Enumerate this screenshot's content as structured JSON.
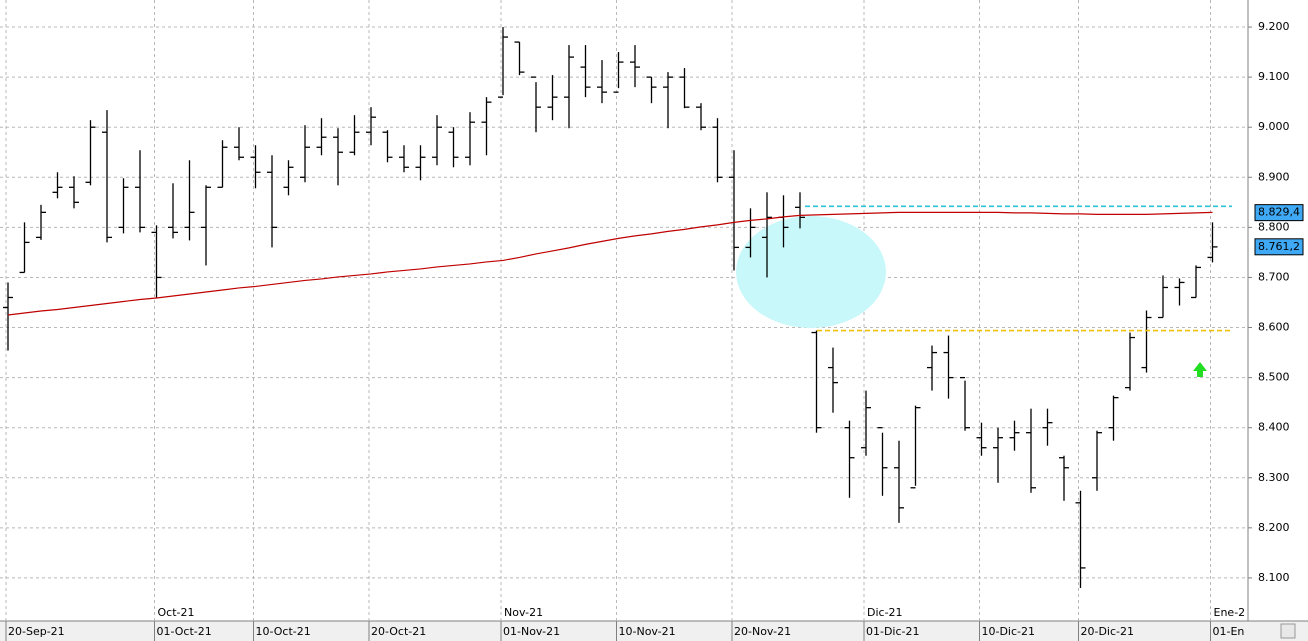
{
  "chart_data": {
    "type": "ohlc",
    "categories": [
      "20-Sep-21",
      null,
      null,
      null,
      null,
      null,
      null,
      null,
      null,
      "01-Oct-21",
      null,
      null,
      null,
      null,
      null,
      "10-Oct-21",
      null,
      null,
      null,
      null,
      null,
      null,
      "20-Oct-21",
      null,
      null,
      null,
      null,
      null,
      null,
      null,
      "01-Nov-21",
      null,
      null,
      null,
      null,
      null,
      null,
      "10-Nov-21",
      null,
      null,
      null,
      null,
      null,
      null,
      "20-Nov-21",
      null,
      null,
      null,
      null,
      null,
      null,
      null,
      "01-Dic-21",
      null,
      null,
      null,
      null,
      null,
      null,
      "10-Dic-21",
      null,
      null,
      null,
      null,
      null,
      "20-Dic-21",
      null,
      null,
      null,
      null,
      null,
      null,
      null,
      "01-En"
    ],
    "month_categories": [
      null,
      null,
      null,
      null,
      null,
      null,
      null,
      null,
      null,
      "Oct-21",
      null,
      null,
      null,
      null,
      null,
      null,
      null,
      null,
      null,
      null,
      null,
      null,
      null,
      null,
      null,
      null,
      null,
      null,
      null,
      null,
      "Nov-21",
      null,
      null,
      null,
      null,
      null,
      null,
      null,
      null,
      null,
      null,
      null,
      null,
      null,
      null,
      null,
      null,
      null,
      null,
      null,
      null,
      null,
      "Dic-21",
      null,
      null,
      null,
      null,
      null,
      null,
      null,
      null,
      null,
      null,
      null,
      null,
      null,
      null,
      null,
      null,
      null,
      null,
      null,
      null,
      "Ene-2"
    ],
    "open": [
      8640,
      8710,
      8780,
      8870,
      8880,
      8890,
      8990,
      8800,
      8880,
      8790,
      8800,
      8800,
      8800,
      8880,
      8960,
      8940,
      8910,
      8880,
      8900,
      8960,
      8980,
      8950,
      8990,
      8990,
      8940,
      8920,
      8940,
      8990,
      8940,
      9010,
      9060,
      9170,
      9100,
      9040,
      9060,
      9120,
      9080,
      9070,
      9130,
      9100,
      9080,
      9100,
      9040,
      9000,
      8900,
      8760,
      8780,
      8820,
      8840,
      8590,
      8520,
      8400,
      8360,
      8400,
      8320,
      8280,
      8520,
      8550,
      8500,
      8380,
      8360,
      8380,
      8390,
      8400,
      8340,
      8250,
      8300,
      8400,
      8480,
      8520,
      8620,
      8680,
      8660,
      8740
    ],
    "high": [
      8690,
      8810,
      8845,
      8910,
      8902,
      9014,
      9034,
      8898,
      8954,
      8804,
      8888,
      8934,
      8884,
      8974,
      9000,
      8964,
      8944,
      8934,
      9004,
      9018,
      8998,
      9024,
      9040,
      8994,
      8964,
      8964,
      9024,
      9000,
      9030,
      9060,
      9200,
      9170,
      9090,
      9104,
      9164,
      9164,
      9134,
      9150,
      9164,
      9100,
      9110,
      9118,
      9048,
      9018,
      8954,
      8838,
      8870,
      8864,
      8870,
      8594,
      8560,
      8414,
      8474,
      8390,
      8374,
      8444,
      8564,
      8584,
      8494,
      8410,
      8400,
      8414,
      8438,
      8438,
      8344,
      8274,
      8394,
      8464,
      8590,
      8634,
      8704,
      8698,
      8724,
      8810
    ],
    "low": [
      8554,
      8710,
      8775,
      8858,
      8838,
      8884,
      8770,
      8788,
      8790,
      8660,
      8778,
      8774,
      8724,
      8880,
      8934,
      8878,
      8760,
      8864,
      8890,
      8944,
      8884,
      8944,
      8964,
      8930,
      8910,
      8894,
      8924,
      8920,
      8924,
      8944,
      9064,
      9104,
      8990,
      9014,
      8998,
      9060,
      9048,
      9078,
      9080,
      9048,
      8998,
      9038,
      8994,
      8890,
      8714,
      8740,
      8700,
      8760,
      8798,
      8390,
      8430,
      8260,
      8344,
      8264,
      8210,
      8284,
      8474,
      8458,
      8394,
      8344,
      8290,
      8354,
      8270,
      8364,
      8254,
      8080,
      8274,
      8374,
      8474,
      8510,
      8620,
      8644,
      8660,
      8730
    ],
    "close": [
      8660,
      8770,
      8830,
      8880,
      8850,
      9000,
      8780,
      8880,
      8800,
      8700,
      8790,
      8830,
      8880,
      8960,
      8940,
      8910,
      8800,
      8920,
      8960,
      8980,
      8950,
      8990,
      9020,
      8940,
      8920,
      8940,
      9000,
      8940,
      9010,
      9050,
      9180,
      9110,
      9040,
      9060,
      9140,
      9080,
      9070,
      9130,
      9120,
      9080,
      9100,
      9040,
      9000,
      8900,
      8760,
      8800,
      8820,
      8800,
      8820,
      8400,
      8490,
      8340,
      8440,
      8320,
      8240,
      8440,
      8550,
      8500,
      8400,
      8360,
      8380,
      8390,
      8280,
      8410,
      8320,
      8120,
      8390,
      8460,
      8580,
      8620,
      8680,
      8690,
      8720,
      8761
    ],
    "color": "#000000",
    "moving_average": {
      "color": "#c00000",
      "values": [
        8625,
        8629,
        8633,
        8636,
        8640,
        8644,
        8648,
        8652,
        8656,
        8659,
        8663,
        8667,
        8671,
        8675,
        8679,
        8682,
        8686,
        8690,
        8694,
        8697,
        8701,
        8704,
        8707,
        8711,
        8714,
        8717,
        8721,
        8724,
        8727,
        8731,
        8734,
        8740,
        8747,
        8753,
        8759,
        8766,
        8772,
        8778,
        8783,
        8787,
        8792,
        8796,
        8801,
        8805,
        8810,
        8814,
        8817,
        8821,
        8824,
        8825,
        8826,
        8827,
        8828,
        8829,
        8830,
        8830,
        8830,
        8830,
        8830,
        8830,
        8830,
        8829,
        8829,
        8828,
        8827,
        8827,
        8826,
        8826,
        8826,
        8826,
        8827,
        8828,
        8829,
        8830
      ]
    },
    "levels": [
      {
        "value": 8842,
        "color": "#2ec4d8"
      },
      {
        "value": 8594,
        "color": "#f0c000"
      }
    ],
    "price_labels": [
      {
        "value": 8829.4,
        "label": "8.829,4"
      },
      {
        "value": 8761.2,
        "label": "8.761,2"
      }
    ],
    "ylim": [
      8014,
      9254
    ],
    "yticks": [
      {
        "value": 9200,
        "label": "9.200"
      },
      {
        "value": 9100,
        "label": "9.100"
      },
      {
        "value": 9000,
        "label": "9.000"
      },
      {
        "value": 8900,
        "label": "8.900"
      },
      {
        "value": 8800,
        "label": "8.800"
      },
      {
        "value": 8700,
        "label": "8.700"
      },
      {
        "value": 8600,
        "label": "8.600"
      },
      {
        "value": 8500,
        "label": "8.500"
      },
      {
        "value": 8400,
        "label": "8.400"
      },
      {
        "value": 8300,
        "label": "8.300"
      },
      {
        "value": 8200,
        "label": "8.200"
      },
      {
        "value": 8100,
        "label": "8.100"
      }
    ],
    "grid": true
  }
}
